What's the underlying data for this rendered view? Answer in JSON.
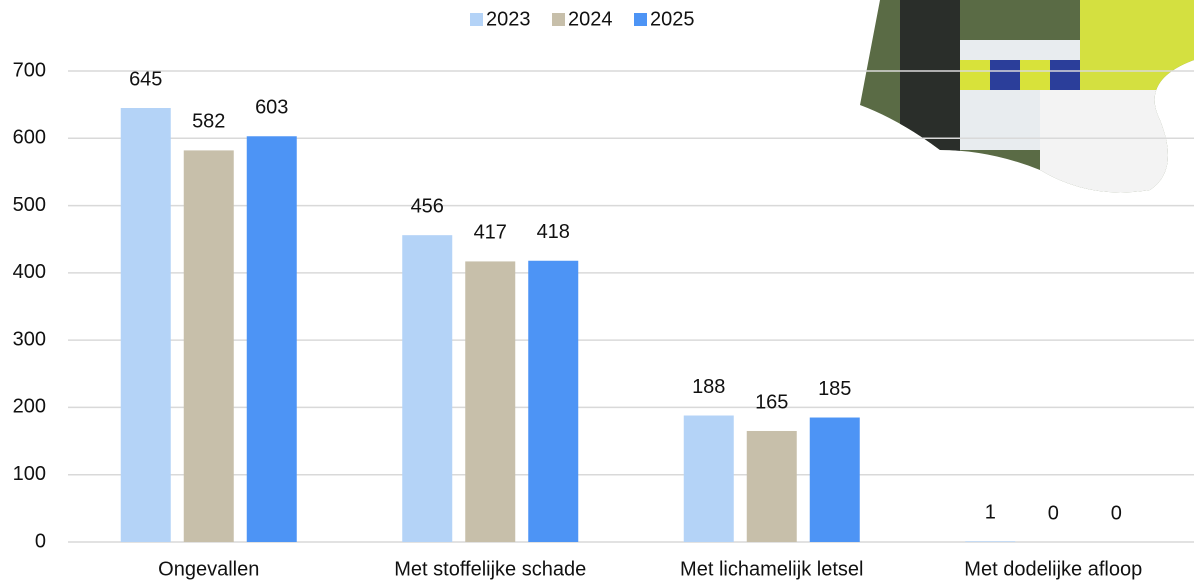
{
  "chart_data": {
    "type": "bar",
    "categories": [
      "Ongevallen",
      "Met stoffelijke schade",
      "Met lichamelijk letsel",
      "Met dodelijke afloop"
    ],
    "series": [
      {
        "name": "2023",
        "color": "#b4d3f7",
        "values": [
          645,
          456,
          188,
          1
        ]
      },
      {
        "name": "2024",
        "color": "#c7bfaa",
        "values": [
          582,
          417,
          165,
          0
        ]
      },
      {
        "name": "2025",
        "color": "#4d94f5",
        "values": [
          603,
          418,
          185,
          0
        ]
      }
    ],
    "ylim": [
      0,
      700
    ],
    "yticks": [
      0,
      100,
      200,
      300,
      400,
      500,
      600,
      700
    ],
    "grid": true,
    "legend": "top"
  }
}
